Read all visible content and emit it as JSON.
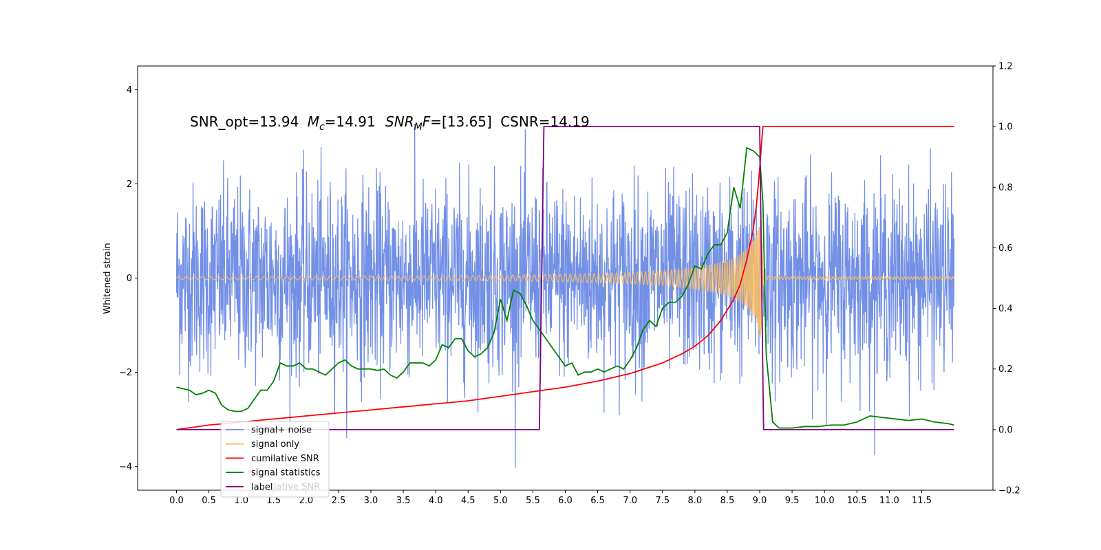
{
  "chart_data": {
    "type": "line",
    "annotation": "SNR_opt=13.94 Mc=14.91 SNRMF=[13.65] CSNR=14.19",
    "annotation_parts": {
      "snr_opt": "SNR_opt=13.94",
      "mc_symbol": "M",
      "mc_sub": "c",
      "mc_value": "=14.91",
      "snrmf_symbol": "SNR",
      "snrmf_sub": "M",
      "snrmf_F": "F",
      "snrmf_value": "=[13.65]",
      "csnr": "CSNR=14.19"
    },
    "ylabel_left": "Whitened strain",
    "xlim": [
      -0.6,
      12.6
    ],
    "ylim_left": [
      -4.5,
      4.5
    ],
    "ylim_right": [
      -0.2,
      1.2
    ],
    "x_ticks": [
      "0.0",
      "0.5",
      "1.0",
      "1.5",
      "2.0",
      "2.5",
      "3.0",
      "3.5",
      "4.0",
      "4.5",
      "5.0",
      "5.5",
      "6.0",
      "6.5",
      "7.0",
      "7.5",
      "8.0",
      "8.5",
      "9.0",
      "9.5",
      "10.0",
      "10.5",
      "11.0",
      "11.5"
    ],
    "y_ticks_left": [
      "4",
      "2",
      "0",
      "−2",
      "−4"
    ],
    "y_ticks_right": [
      "1.2",
      "1.0",
      "0.8",
      "0.6",
      "0.4",
      "0.2",
      "0.0",
      "−0.2"
    ],
    "grid": false,
    "legend_position": "lower-left",
    "legend_ghost_text": "lative SNR",
    "series": [
      {
        "name": "signal+ noise",
        "color": "#6b8ae6",
        "axis": "left",
        "x_range": [
          0.0,
          12.0
        ],
        "envelope_typical": [
          -1.4,
          1.4
        ],
        "envelope_extreme": [
          -4.1,
          4.1
        ]
      },
      {
        "name": "signal only",
        "color": "#ffbf5f",
        "axis": "left",
        "x_range": [
          0.0,
          12.0
        ],
        "envelope": {
          "x": [
            0.0,
            2.0,
            4.0,
            5.0,
            6.0,
            7.0,
            7.5,
            8.0,
            8.3,
            8.6,
            8.8,
            8.95,
            9.02,
            9.06,
            12.0
          ],
          "amp": [
            0.03,
            0.04,
            0.05,
            0.06,
            0.08,
            0.12,
            0.16,
            0.23,
            0.3,
            0.42,
            0.62,
            0.9,
            1.3,
            0.03,
            0.03
          ]
        }
      },
      {
        "name": "cumilative SNR",
        "color": "#ff0000",
        "axis": "right",
        "x": [
          0.0,
          0.5,
          1.0,
          1.5,
          2.0,
          2.5,
          3.0,
          3.5,
          4.0,
          4.5,
          5.0,
          5.5,
          6.0,
          6.5,
          7.0,
          7.5,
          7.8,
          8.0,
          8.2,
          8.4,
          8.6,
          8.7,
          8.8,
          8.9,
          8.95,
          9.0,
          9.03,
          9.05,
          12.0
        ],
        "values": [
          0.0,
          0.015,
          0.025,
          0.035,
          0.045,
          0.055,
          0.065,
          0.075,
          0.085,
          0.095,
          0.11,
          0.125,
          0.14,
          0.16,
          0.185,
          0.22,
          0.25,
          0.275,
          0.31,
          0.36,
          0.43,
          0.48,
          0.56,
          0.66,
          0.74,
          0.86,
          0.95,
          1.0,
          1.0
        ]
      },
      {
        "name": "signal statistics",
        "color": "#008000",
        "axis": "right",
        "x": [
          0.0,
          0.1,
          0.2,
          0.3,
          0.4,
          0.5,
          0.6,
          0.7,
          0.8,
          0.9,
          1.0,
          1.1,
          1.2,
          1.3,
          1.4,
          1.5,
          1.6,
          1.7,
          1.8,
          1.9,
          2.0,
          2.1,
          2.2,
          2.3,
          2.4,
          2.5,
          2.6,
          2.7,
          2.8,
          2.9,
          3.0,
          3.1,
          3.2,
          3.3,
          3.4,
          3.5,
          3.6,
          3.7,
          3.8,
          3.9,
          4.0,
          4.1,
          4.2,
          4.3,
          4.4,
          4.5,
          4.6,
          4.7,
          4.8,
          4.9,
          5.0,
          5.1,
          5.2,
          5.3,
          5.4,
          5.5,
          5.6,
          5.7,
          5.8,
          5.9,
          6.0,
          6.1,
          6.2,
          6.3,
          6.4,
          6.5,
          6.6,
          6.7,
          6.8,
          6.9,
          7.0,
          7.1,
          7.2,
          7.3,
          7.4,
          7.5,
          7.6,
          7.7,
          7.8,
          7.9,
          8.0,
          8.1,
          8.2,
          8.3,
          8.4,
          8.5,
          8.6,
          8.7,
          8.8,
          8.9,
          9.0,
          9.05,
          9.1,
          9.2,
          9.3,
          9.5,
          9.7,
          9.9,
          10.1,
          10.3,
          10.5,
          10.7,
          10.9,
          11.1,
          11.3,
          11.5,
          11.7,
          11.9,
          12.0
        ],
        "values": [
          0.14,
          0.135,
          0.13,
          0.115,
          0.12,
          0.13,
          0.12,
          0.08,
          0.065,
          0.06,
          0.06,
          0.07,
          0.1,
          0.13,
          0.13,
          0.16,
          0.22,
          0.21,
          0.21,
          0.22,
          0.2,
          0.2,
          0.19,
          0.18,
          0.2,
          0.22,
          0.23,
          0.21,
          0.2,
          0.2,
          0.2,
          0.195,
          0.2,
          0.18,
          0.17,
          0.19,
          0.22,
          0.22,
          0.22,
          0.21,
          0.23,
          0.28,
          0.27,
          0.3,
          0.3,
          0.26,
          0.24,
          0.25,
          0.27,
          0.32,
          0.43,
          0.36,
          0.46,
          0.45,
          0.41,
          0.36,
          0.33,
          0.3,
          0.27,
          0.24,
          0.21,
          0.22,
          0.18,
          0.19,
          0.19,
          0.2,
          0.19,
          0.2,
          0.21,
          0.2,
          0.23,
          0.27,
          0.33,
          0.36,
          0.34,
          0.4,
          0.42,
          0.42,
          0.44,
          0.48,
          0.54,
          0.53,
          0.58,
          0.61,
          0.61,
          0.65,
          0.8,
          0.73,
          0.93,
          0.92,
          0.9,
          0.75,
          0.25,
          0.025,
          0.005,
          0.005,
          0.01,
          0.01,
          0.015,
          0.015,
          0.025,
          0.045,
          0.04,
          0.035,
          0.03,
          0.035,
          0.025,
          0.02,
          0.015
        ]
      },
      {
        "name": "label",
        "color": "#800080",
        "axis": "right",
        "x": [
          0.0,
          5.6,
          5.67,
          9.0,
          9.06,
          12.0
        ],
        "values": [
          0.0,
          0.0,
          1.0,
          1.0,
          0.0,
          0.0
        ]
      }
    ]
  }
}
